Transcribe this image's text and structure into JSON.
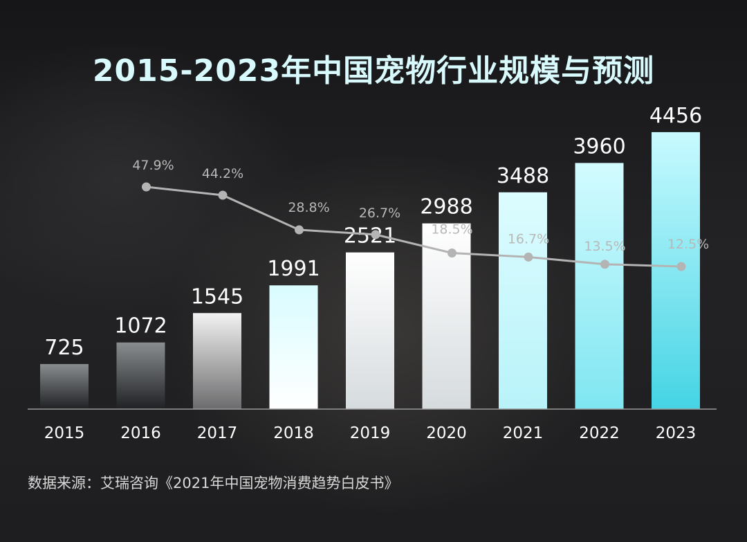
{
  "chart_data": {
    "type": "bar",
    "title": "2015-2023年中国宠物行业规模与预测",
    "categories": [
      "2015",
      "2016",
      "2017",
      "2018",
      "2019",
      "2020",
      "2021",
      "2022",
      "2023"
    ],
    "series": [
      {
        "values": [
          725,
          1072,
          1545,
          1991,
          2521,
          2988,
          3488,
          3960,
          4456
        ]
      },
      {
        "type": "line",
        "values_pct": [
          47.9,
          44.2,
          28.8,
          26.7,
          18.5,
          16.7,
          13.5,
          12.5
        ],
        "labels": [
          "47.9%",
          "44.2%",
          "28.8%",
          "26.7%",
          "18.5%",
          "16.7%",
          "13.5%",
          "12.5%"
        ],
        "starts_at": "2016"
      }
    ],
    "ylim": [
      0,
      4800
    ],
    "line_ylim": [
      0,
      100
    ],
    "grid": false,
    "legend": "none",
    "source": "数据来源：艾瑞咨询《2021年中国宠物消费趋势白皮书》",
    "colors": {
      "title": "#d8fafc",
      "line": "#b4b4b4",
      "bar_dark": [
        "#8a8d90",
        "#1f2124"
      ],
      "bar_light": [
        "#ffffff",
        "#d6dbde"
      ],
      "bar_cyan": [
        "#d8fbff",
        "#4ad6e6"
      ]
    }
  }
}
